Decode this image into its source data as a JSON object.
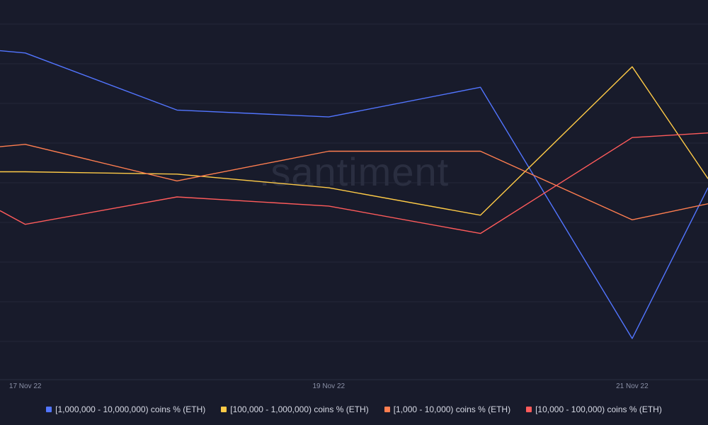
{
  "watermark": ".santiment",
  "chart_data": {
    "type": "line",
    "x": [
      "2022-11-16T20:00",
      "2022-11-17T00:00",
      "2022-11-18T00:00",
      "2022-11-19T00:00",
      "2022-11-20T00:00",
      "2022-11-21T00:00",
      "2022-11-21T12:00"
    ],
    "x_range": [
      "2022-11-16T20:00",
      "2022-11-21T12:00"
    ],
    "x_ticks": [
      {
        "value": "2022-11-17T00:00",
        "label": "17 Nov 22"
      },
      {
        "value": "2022-11-19T00:00",
        "label": "19 Nov 22"
      },
      {
        "value": "2022-11-21T00:00",
        "label": "21 Nov 22"
      }
    ],
    "y_axis_labels": "hidden",
    "grid": "horizontal",
    "legend_position": "bottom",
    "series": [
      {
        "name": "[1,000,000 - 10,000,000) coins % (ETH)",
        "color": "#5275ff",
        "values": [
          92,
          91.5,
          79,
          77.5,
          84,
          29,
          62
        ]
      },
      {
        "name": "[100,000  - 1,000,000) coins % (ETH)",
        "color": "#ffcb47",
        "values": [
          65.5,
          65.5,
          65,
          62,
          56,
          88.5,
          64
        ]
      },
      {
        "name": "[1,000 - 10,000) coins % (ETH)",
        "color": "#ff7e50",
        "values": [
          71,
          71.5,
          63.5,
          70,
          70,
          55,
          58.5
        ]
      },
      {
        "name": "[10,000 - 100,000) coins % (ETH)",
        "color": "#ff5b5b",
        "values": [
          57,
          54,
          60,
          58,
          52,
          73,
          74
        ]
      }
    ]
  }
}
